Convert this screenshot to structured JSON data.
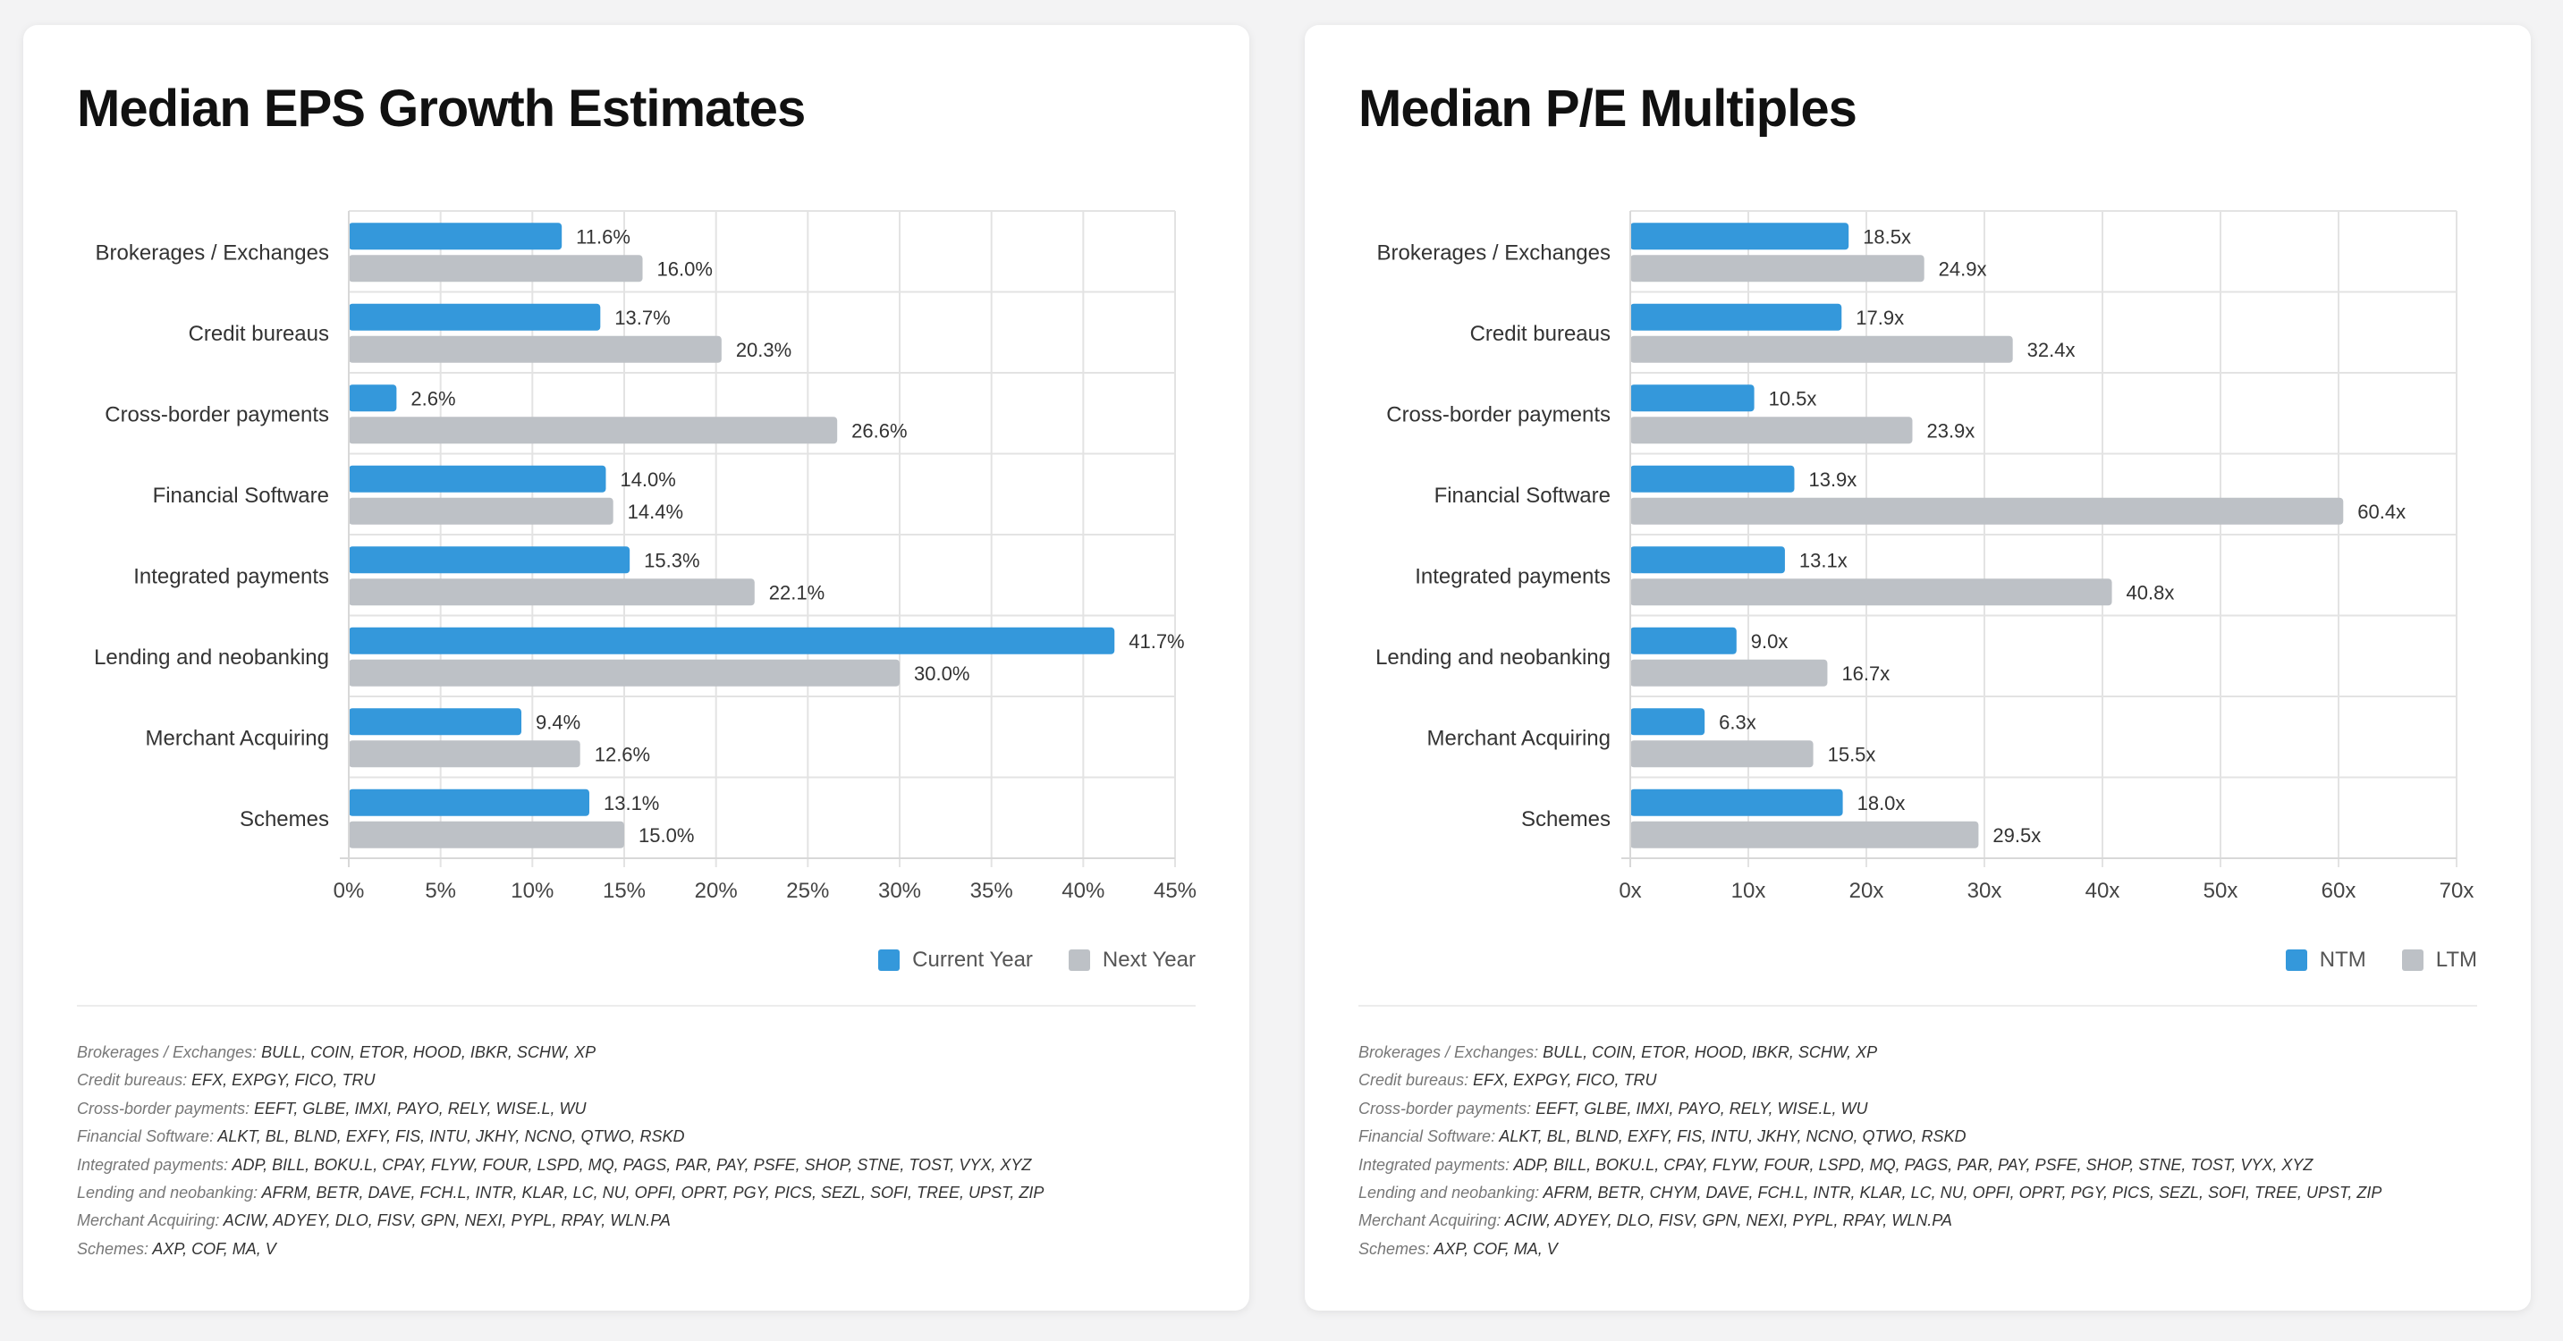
{
  "colors": {
    "primary": "#3498db",
    "secondary": "#bdc1c6",
    "grid": "#e3e3e3"
  },
  "charts": [
    {
      "title": "Median EPS Growth Estimates",
      "legend": [
        {
          "label": "Current Year",
          "color": "#3498db"
        },
        {
          "label": "Next Year",
          "color": "#bdc1c6"
        }
      ]
    },
    {
      "title": "Median P/E Multiples",
      "legend": [
        {
          "label": "NTM",
          "color": "#3498db"
        },
        {
          "label": "LTM",
          "color": "#bdc1c6"
        }
      ]
    }
  ],
  "chart_data": [
    {
      "type": "bar",
      "orientation": "horizontal",
      "title": "Median EPS Growth Estimates",
      "categories": [
        "Brokerages / Exchanges",
        "Credit bureaus",
        "Cross-border payments",
        "Financial Software",
        "Integrated payments",
        "Lending and neobanking",
        "Merchant Acquiring",
        "Schemes"
      ],
      "series": [
        {
          "name": "Current Year",
          "values": [
            11.6,
            13.7,
            2.6,
            14.0,
            15.3,
            41.7,
            9.4,
            13.1
          ],
          "labels": [
            "11.6%",
            "13.7%",
            "2.6%",
            "14.0%",
            "15.3%",
            "41.7%",
            "9.4%",
            "13.1%"
          ]
        },
        {
          "name": "Next Year",
          "values": [
            16.0,
            20.3,
            26.6,
            14.4,
            22.1,
            30.0,
            12.6,
            15.0
          ],
          "labels": [
            "16.0%",
            "20.3%",
            "26.6%",
            "14.4%",
            "22.1%",
            "30.0%",
            "12.6%",
            "15.0%"
          ]
        }
      ],
      "xlim": [
        0,
        45
      ],
      "ticks": [
        0,
        5,
        10,
        15,
        20,
        25,
        30,
        35,
        40,
        45
      ],
      "tick_labels": [
        "0%",
        "5%",
        "10%",
        "15%",
        "20%",
        "25%",
        "30%",
        "35%",
        "40%",
        "45%"
      ],
      "legend_position": "bottom-right",
      "grid": true
    },
    {
      "type": "bar",
      "orientation": "horizontal",
      "title": "Median P/E Multiples",
      "categories": [
        "Brokerages / Exchanges",
        "Credit bureaus",
        "Cross-border payments",
        "Financial Software",
        "Integrated payments",
        "Lending and neobanking",
        "Merchant Acquiring",
        "Schemes"
      ],
      "series": [
        {
          "name": "NTM",
          "values": [
            18.5,
            17.9,
            10.5,
            13.9,
            13.1,
            9.0,
            6.3,
            18.0
          ],
          "labels": [
            "18.5x",
            "17.9x",
            "10.5x",
            "13.9x",
            "13.1x",
            "9.0x",
            "6.3x",
            "18.0x"
          ]
        },
        {
          "name": "LTM",
          "values": [
            24.9,
            32.4,
            23.9,
            60.4,
            40.8,
            16.7,
            15.5,
            29.5
          ],
          "labels": [
            "24.9x",
            "32.4x",
            "23.9x",
            "60.4x",
            "40.8x",
            "16.7x",
            "15.5x",
            "29.5x"
          ]
        }
      ],
      "xlim": [
        0,
        70
      ],
      "ticks": [
        0,
        10,
        20,
        30,
        40,
        50,
        60,
        70
      ],
      "tick_labels": [
        "0x",
        "10x",
        "20x",
        "30x",
        "40x",
        "50x",
        "60x",
        "70x"
      ],
      "legend_position": "bottom-right",
      "grid": true
    }
  ],
  "notes": {
    "left": [
      {
        "label": "Brokerages / Exchanges:",
        "tickers": "BULL, COIN, ETOR, HOOD, IBKR, SCHW, XP"
      },
      {
        "label": "Credit bureaus:",
        "tickers": "EFX, EXPGY, FICO, TRU"
      },
      {
        "label": "Cross-border payments:",
        "tickers": "EEFT, GLBE, IMXI, PAYO, RELY, WISE.L, WU"
      },
      {
        "label": "Financial Software:",
        "tickers": "ALKT, BL, BLND, EXFY, FIS, INTU, JKHY, NCNO, QTWO, RSKD"
      },
      {
        "label": "Integrated payments:",
        "tickers": "ADP, BILL, BOKU.L, CPAY, FLYW, FOUR, LSPD, MQ, PAGS, PAR, PAY, PSFE, SHOP, STNE, TOST, VYX, XYZ"
      },
      {
        "label": "Lending and neobanking:",
        "tickers": "AFRM, BETR, DAVE, FCH.L, INTR, KLAR, LC, NU, OPFI, OPRT, PGY, PICS, SEZL, SOFI, TREE, UPST, ZIP"
      },
      {
        "label": "Merchant Acquiring:",
        "tickers": "ACIW, ADYEY, DLO, FISV, GPN, NEXI, PYPL, RPAY, WLN.PA"
      },
      {
        "label": "Schemes:",
        "tickers": "AXP, COF, MA, V"
      }
    ],
    "right": [
      {
        "label": "Brokerages / Exchanges:",
        "tickers": "BULL, COIN, ETOR, HOOD, IBKR, SCHW, XP"
      },
      {
        "label": "Credit bureaus:",
        "tickers": "EFX, EXPGY, FICO, TRU"
      },
      {
        "label": "Cross-border payments:",
        "tickers": "EEFT, GLBE, IMXI, PAYO, RELY, WISE.L, WU"
      },
      {
        "label": "Financial Software:",
        "tickers": "ALKT, BL, BLND, EXFY, FIS, INTU, JKHY, NCNO, QTWO, RSKD"
      },
      {
        "label": "Integrated payments:",
        "tickers": "ADP, BILL, BOKU.L, CPAY, FLYW, FOUR, LSPD, MQ, PAGS, PAR, PAY, PSFE, SHOP, STNE, TOST, VYX, XYZ"
      },
      {
        "label": "Lending and neobanking:",
        "tickers": "AFRM, BETR, CHYM, DAVE, FCH.L, INTR, KLAR, LC, NU, OPFI, OPRT, PGY, PICS, SEZL, SOFI, TREE, UPST, ZIP"
      },
      {
        "label": "Merchant Acquiring:",
        "tickers": "ACIW, ADYEY, DLO, FISV, GPN, NEXI, PYPL, RPAY, WLN.PA"
      },
      {
        "label": "Schemes:",
        "tickers": "AXP, COF, MA, V"
      }
    ]
  }
}
